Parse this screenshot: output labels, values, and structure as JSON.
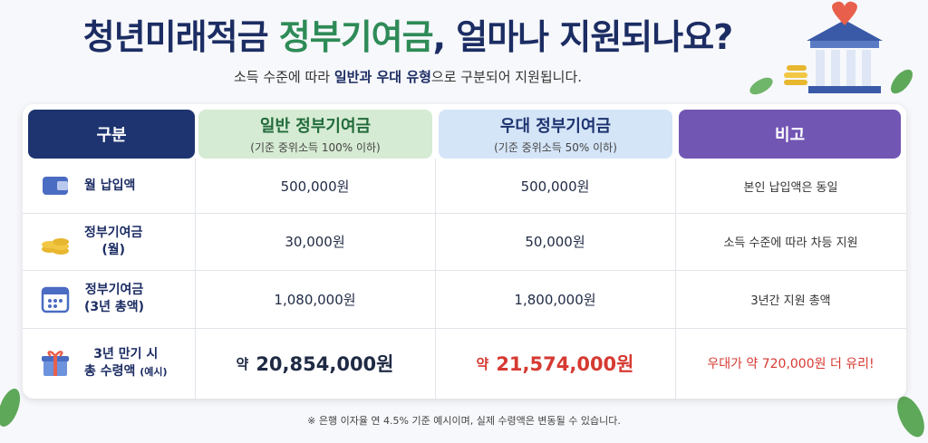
{
  "header": {
    "title": {
      "before": "청년미래적금",
      "highlight": "정부기여금",
      "after": ", 얼마나 지원되나요?"
    },
    "subtitle": {
      "before": "소득 수준에 따라",
      "bold": "일반과 우대 유형",
      "after": "으로 구분되어 지원됩니다."
    }
  },
  "table": {
    "columns": [
      {
        "title": "구분"
      },
      {
        "title": "일반 정부기여금",
        "sub": "(기준 중위소득 100% 이하)"
      },
      {
        "title": "우대 정부기여금",
        "sub": "(기준 중위소득 50% 이하)"
      },
      {
        "title": "비고"
      }
    ],
    "rows": [
      {
        "label": [
          "월 납입액"
        ],
        "general": "500,000원",
        "preferred": "500,000원",
        "note": "본인 납입액은 동일"
      },
      {
        "label": [
          "정부기여금",
          "(월)"
        ],
        "general": "30,000원",
        "preferred": "50,000원",
        "note": "소득 수준에 따라 차등 지원"
      },
      {
        "label": [
          "정부기여금",
          "(3년 총액)"
        ],
        "general": "1,080,000원",
        "preferred": "1,800,000원",
        "note": "3년간 지원 총액"
      },
      {
        "label": [
          "3년 만기 시",
          "총 수령액"
        ],
        "label_small": "(예시)",
        "prefix": "약",
        "general": "20,854,000원",
        "preferred": "21,574,000원",
        "note": "우대가 약 720,000원 더 유리!"
      }
    ]
  },
  "footnote": "※ 은행 이자율 연 4.5% 기준 예시이며, 실제 수령액은 변동될 수 있습니다."
}
